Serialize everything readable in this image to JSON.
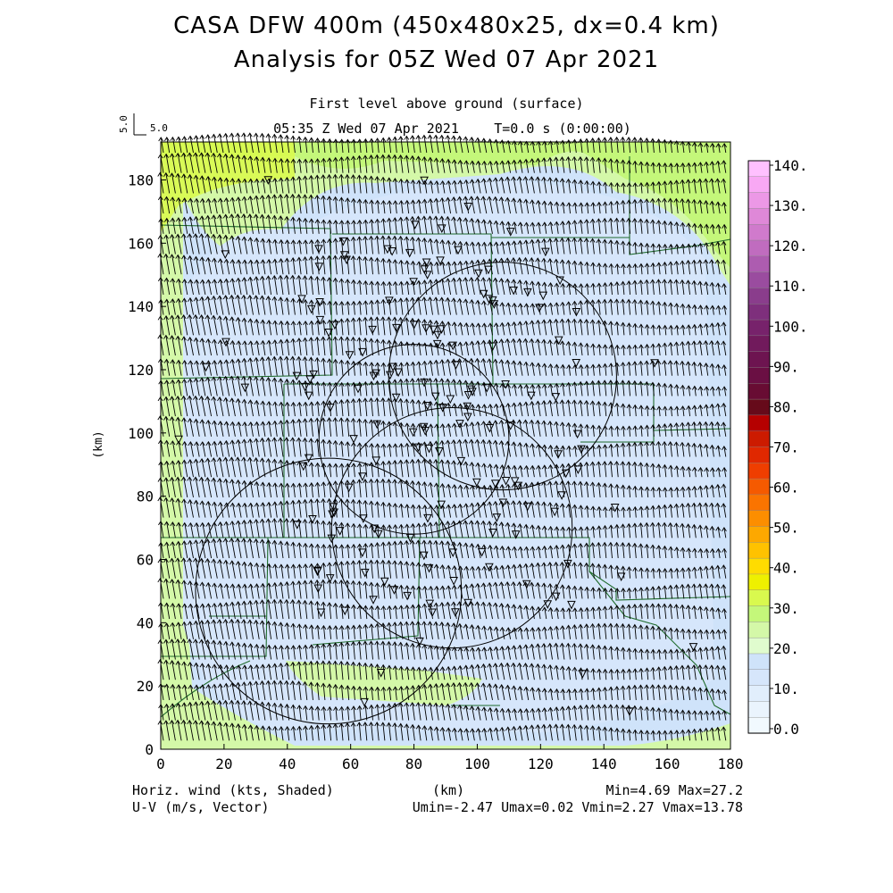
{
  "header": {
    "title_line1": "CASA DFW 400m (450x480x25, dx=0.4 km)",
    "title_line2": "Analysis for 05Z Wed 07 Apr 2021",
    "level": "First level above ground (surface)",
    "valid_time": "05:35 Z Wed 07 Apr 2021",
    "model_time": "T=0.0 s (0:00:00)"
  },
  "vector_ref": {
    "value": "5.0",
    "side_label": "5.0"
  },
  "footer": {
    "left_line1": "Horiz. wind (kts, Shaded)",
    "left_line2": "U-V (m/s, Vector)",
    "center": "(km)",
    "right_line1": "Min=4.69 Max=27.2",
    "right_line2": "Umin=-2.47 Umax=0.02 Vmin=2.27 Vmax=13.78"
  },
  "colorbar": {
    "labels": [
      "140.",
      "130.",
      "120.",
      "110.",
      "100.",
      "90.",
      "80.",
      "70.",
      "60.",
      "50.",
      "40.",
      "30.",
      "20.",
      "10.",
      "0.0"
    ],
    "colors": [
      "#ffc0ff",
      "#f8a8f4",
      "#ec98e6",
      "#df88d8",
      "#d07acc",
      "#c06cbf",
      "#ad5cb0",
      "#9a4c9f",
      "#8a3d8c",
      "#7e2f7c",
      "#77226b",
      "#711a5c",
      "#6d1450",
      "#6a0f43",
      "#680c33",
      "#660a1a",
      "#b50000",
      "#cc1b00",
      "#e02800",
      "#ef3e00",
      "#f55a00",
      "#fa7400",
      "#fc8e00",
      "#fda800",
      "#ffc200",
      "#ffdc00",
      "#eef000",
      "#d9f94e",
      "#c4f77a",
      "#d4f8a8",
      "#e0fcce",
      "#cfe3fa",
      "#d6e6fb",
      "#e1eefc",
      "#eaf4fd",
      "#f1f9fe"
    ]
  },
  "chart_data": {
    "type": "heatmap",
    "xlabel": "(km)",
    "ylabel": "(km)",
    "xlim": [
      0,
      180
    ],
    "ylim": [
      0,
      192
    ],
    "xticks": [
      0,
      20,
      40,
      60,
      80,
      100,
      120,
      140,
      160,
      180
    ],
    "yticks": [
      0,
      20,
      40,
      60,
      80,
      100,
      120,
      140,
      160,
      180
    ],
    "shaded_field": "Horiz. wind (kts)",
    "vector_field": "U-V (m/s)",
    "min": 4.69,
    "max": 27.2,
    "umin": -2.47,
    "umax": 0.02,
    "vmin": 2.27,
    "vmax": 13.78,
    "radar_rings_km": [
      {
        "center": [
          108,
          118
        ],
        "radius": 36
      },
      {
        "center": [
          80,
          98
        ],
        "radius": 30
      },
      {
        "center": [
          92,
          70
        ],
        "radius": 38
      },
      {
        "center": [
          53,
          50
        ],
        "radius": 42
      }
    ]
  }
}
